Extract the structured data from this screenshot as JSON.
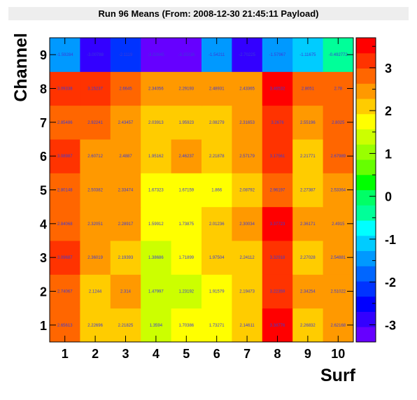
{
  "chart_data": {
    "type": "heatmap",
    "title": "Run 96 Means (From: 2008-12-30 21:45:11 Payload)",
    "xlabel": "Surf",
    "ylabel": "Channel",
    "x": [
      1,
      2,
      3,
      4,
      5,
      6,
      7,
      8,
      9,
      10
    ],
    "y": [
      1,
      2,
      3,
      4,
      5,
      6,
      7,
      8,
      9
    ],
    "zlim": [
      -3.4,
      3.7
    ],
    "colorbar_ticks": [
      -3,
      -2,
      -1,
      0,
      1,
      2,
      3
    ],
    "cells": [
      [
        "2.65613",
        "2.22696",
        "2.21825",
        "1.3594",
        "1.70386",
        "1.73271",
        "2.14611",
        "3.38776",
        "2.26832",
        "2.62168"
      ],
      [
        "2.74067",
        "2.1244",
        "2.314",
        "1.47997",
        "1.23192",
        "1.91579",
        "2.19473",
        "3.22359",
        "2.34254",
        "2.51022"
      ],
      [
        "3.09687",
        "2.36019",
        "2.19393",
        "1.38686",
        "1.71899",
        "1.97504",
        "2.24112",
        "3.32918",
        "2.27028",
        "2.54881"
      ],
      [
        "2.84068",
        "2.32051",
        "2.28917",
        "1.59912",
        "1.73875",
        "2.01236",
        "2.30034",
        "3.37723",
        "2.36171",
        "2.4915"
      ],
      [
        "2.80148",
        "2.50382",
        "2.33474",
        "1.67323",
        "1.67159",
        "1.866",
        "2.08792",
        "2.96197",
        "2.27387",
        "2.53364"
      ],
      [
        "3.08987",
        "2.60712",
        "2.4887",
        "1.95162",
        "2.46237",
        "2.21878",
        "2.57179",
        "3.17561",
        "2.21771",
        "2.67989"
      ],
      [
        "2.85486",
        "2.92241",
        "2.43457",
        "2.03913",
        "1.95923",
        "2.08279",
        "2.31653",
        "3.2676",
        "2.55196",
        "2.8025"
      ],
      [
        "3.09338",
        "3.15237",
        "2.6645",
        "2.34056",
        "2.29193",
        "2.48931",
        "2.43365",
        "3.46532",
        "2.8051",
        "2.78"
      ],
      [
        "-1.59284",
        "-3.00788",
        "-2.1119",
        "-3.32645",
        "-3.15316",
        "-1.54211",
        "-2.70225",
        "-1.57967",
        "-1.11675",
        "-0.492772"
      ]
    ]
  }
}
